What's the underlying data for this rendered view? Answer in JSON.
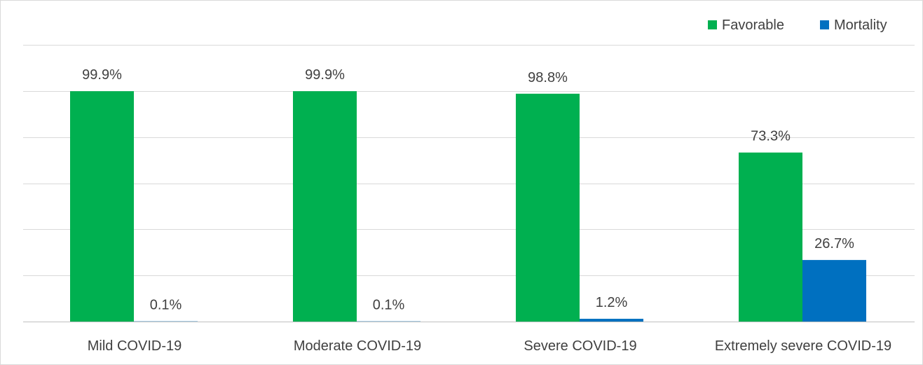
{
  "chart_data": {
    "type": "bar",
    "categories": [
      "Mild COVID-19",
      "Moderate COVID-19",
      "Severe COVID-19",
      "Extremely severe COVID-19"
    ],
    "series": [
      {
        "name": "Favorable",
        "values": [
          99.9,
          99.9,
          98.8,
          73.3
        ],
        "labels": [
          "99.9%",
          "99.9%",
          "98.8%",
          "73.3%"
        ],
        "color": "#00b050"
      },
      {
        "name": "Mortality",
        "values": [
          0.1,
          0.1,
          1.2,
          26.7
        ],
        "labels": [
          "0.1%",
          "0.1%",
          "1.2%",
          "26.7%"
        ],
        "color": "#0070c0"
      }
    ],
    "ylim": [
      0,
      120
    ],
    "gridlines": true,
    "y_axis_labels_visible": false,
    "legend_position": "top-right",
    "unit": "%"
  }
}
